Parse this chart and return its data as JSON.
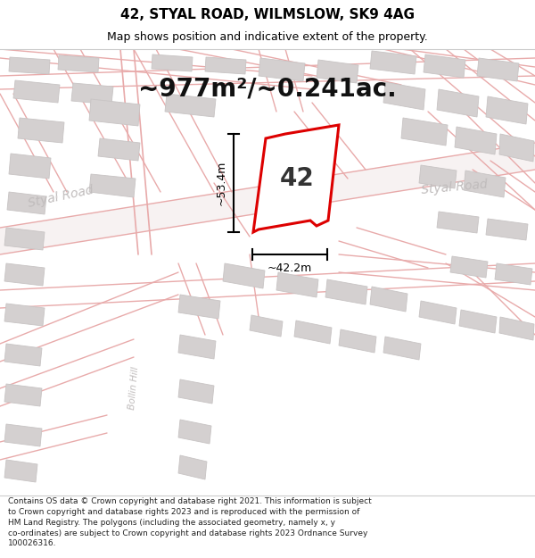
{
  "title": "42, STYAL ROAD, WILMSLOW, SK9 4AG",
  "subtitle": "Map shows position and indicative extent of the property.",
  "area_text": "~977m²/~0.241ac.",
  "label_42": "42",
  "dim_vertical": "~53.4m",
  "dim_horizontal": "~42.2m",
  "road_label_left": "Styal Road",
  "road_label_right": "Styal Road",
  "road_label_center": "Styal Road",
  "road_label_bollin": "Bollin Hill",
  "footer_text": "Contains OS data © Crown copyright and database right 2021. This information is subject to Crown copyright and database rights 2023 and is reproduced with the permission of HM Land Registry. The polygons (including the associated geometry, namely x, y co-ordinates) are subject to Crown copyright and database rights 2023 Ordnance Survey 100026316.",
  "bg_color": "#ffffff",
  "map_bg": "#f2efef",
  "road_fill": "#f7f2f2",
  "plot_color": "#ffffff",
  "plot_border_color": "#dd0000",
  "road_line_color": "#e8aaaa",
  "building_color": "#d4d0d0",
  "building_border": "#c8c4c4",
  "dim_line_color": "#000000",
  "text_color": "#000000",
  "road_text_color": "#c0bcbc",
  "title_fontsize": 11,
  "subtitle_fontsize": 9,
  "area_fontsize": 20,
  "label_fontsize": 20,
  "dim_fontsize": 9,
  "road_fontsize": 10,
  "footer_fontsize": 6.5
}
